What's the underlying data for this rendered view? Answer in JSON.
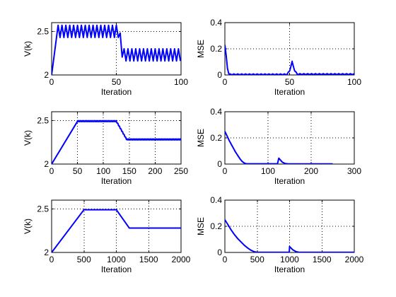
{
  "chart_data": [
    {
      "type": "line",
      "xlabel": "Iteration",
      "ylabel": "V(k)",
      "xlim": [
        0,
        100
      ],
      "ylim": [
        2,
        2.6
      ],
      "xticks": [
        0,
        50,
        100
      ],
      "yticks": [
        2,
        2.5
      ],
      "grid": true,
      "color": "#0000ff",
      "series": [
        {
          "shape": "oscillating",
          "anchors": [
            [
              0,
              2.0
            ],
            [
              5,
              2.57
            ],
            [
              10,
              2.57
            ],
            [
              52,
              2.57
            ],
            [
              55,
              2.3
            ],
            [
              100,
              2.3
            ]
          ],
          "oscillation": {
            "from": 5,
            "period": 3,
            "amplitude": 0.07
          }
        }
      ]
    },
    {
      "type": "line",
      "xlabel": "Iteration",
      "ylabel": "MSE",
      "xlim": [
        0,
        100
      ],
      "ylim": [
        0,
        0.4
      ],
      "xticks": [
        0,
        50,
        100
      ],
      "yticks": [
        0,
        0.2,
        0.4
      ],
      "grid": true,
      "color": "#0000ff",
      "series": [
        {
          "shape": "piecewise",
          "anchors": [
            [
              0,
              0.23
            ],
            [
              1,
              0.15
            ],
            [
              2,
              0.05
            ],
            [
              3,
              0.01
            ],
            [
              4,
              0.003
            ],
            [
              48,
              0.003
            ],
            [
              50,
              0.03
            ],
            [
              52,
              0.1
            ],
            [
              54,
              0.03
            ],
            [
              56,
              0.005
            ],
            [
              100,
              0.005
            ]
          ],
          "oscillation": {
            "from": 4,
            "period": 3,
            "amplitude": 0.005
          }
        }
      ]
    },
    {
      "type": "line",
      "xlabel": "Iteration",
      "ylabel": "V(k)",
      "xlim": [
        0,
        250
      ],
      "ylim": [
        2,
        2.6
      ],
      "xticks": [
        0,
        50,
        100,
        150,
        200,
        250
      ],
      "yticks": [
        2,
        2.5
      ],
      "grid": true,
      "color": "#0000ff",
      "series": [
        {
          "shape": "piecewise",
          "anchors": [
            [
              0,
              2.0
            ],
            [
              50,
              2.49
            ],
            [
              125,
              2.49
            ],
            [
              145,
              2.28
            ],
            [
              250,
              2.28
            ]
          ],
          "oscillation": {
            "from": 50,
            "period": 3,
            "amplitude": 0.008
          }
        }
      ]
    },
    {
      "type": "line",
      "xlabel": "Iteration",
      "ylabel": "MSE",
      "xlim": [
        0,
        300
      ],
      "ylim": [
        0,
        0.4
      ],
      "xticks": [
        0,
        100,
        200,
        300
      ],
      "yticks": [
        0,
        0.2,
        0.4
      ],
      "grid": true,
      "color": "#0000ff",
      "series": [
        {
          "shape": "piecewise",
          "anchors": [
            [
              0,
              0.25
            ],
            [
              5,
              0.215
            ],
            [
              10,
              0.18
            ],
            [
              15,
              0.15
            ],
            [
              20,
              0.12
            ],
            [
              25,
              0.09
            ],
            [
              30,
              0.065
            ],
            [
              35,
              0.04
            ],
            [
              40,
              0.02
            ],
            [
              45,
              0.008
            ],
            [
              50,
              0.002
            ],
            [
              122,
              0.002
            ],
            [
              125,
              0.045
            ],
            [
              133,
              0.015
            ],
            [
              140,
              0.004
            ],
            [
              148,
              0.001
            ],
            [
              250,
              0.001
            ]
          ]
        }
      ]
    },
    {
      "type": "line",
      "xlabel": "Iteration",
      "ylabel": "V(k)",
      "xlim": [
        0,
        2000
      ],
      "ylim": [
        2,
        2.6
      ],
      "xticks": [
        0,
        500,
        1000,
        1500,
        2000
      ],
      "yticks": [
        2,
        2.5
      ],
      "grid": true,
      "color": "#0000ff",
      "series": [
        {
          "shape": "piecewise",
          "anchors": [
            [
              0,
              2.0
            ],
            [
              500,
              2.49
            ],
            [
              1000,
              2.49
            ],
            [
              1200,
              2.28
            ],
            [
              2000,
              2.28
            ]
          ]
        }
      ]
    },
    {
      "type": "line",
      "xlabel": "Iteration",
      "ylabel": "MSE",
      "xlim": [
        0,
        2000
      ],
      "ylim": [
        0,
        0.4
      ],
      "xticks": [
        0,
        500,
        1000,
        1500,
        2000
      ],
      "yticks": [
        0,
        0.2,
        0.4
      ],
      "grid": true,
      "color": "#0000ff",
      "series": [
        {
          "shape": "piecewise",
          "anchors": [
            [
              0,
              0.25
            ],
            [
              50,
              0.21
            ],
            [
              100,
              0.17
            ],
            [
              150,
              0.135
            ],
            [
              200,
              0.105
            ],
            [
              250,
              0.08
            ],
            [
              300,
              0.055
            ],
            [
              350,
              0.035
            ],
            [
              400,
              0.018
            ],
            [
              450,
              0.006
            ],
            [
              500,
              0.001
            ],
            [
              995,
              0.001
            ],
            [
              1000,
              0.045
            ],
            [
              1050,
              0.02
            ],
            [
              1100,
              0.006
            ],
            [
              1150,
              0.001
            ],
            [
              2000,
              0.001
            ]
          ]
        }
      ]
    }
  ]
}
